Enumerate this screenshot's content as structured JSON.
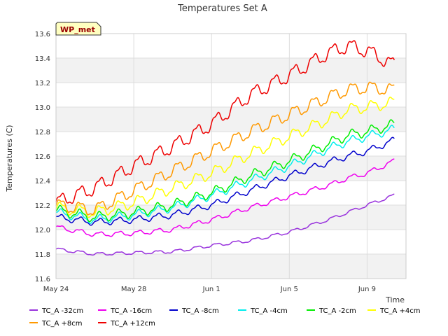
{
  "chart_data": {
    "type": "line",
    "title": "Temperatures Set A",
    "xlabel": "Time",
    "ylabel": "Temperatures (C)",
    "badge": "WP_met",
    "x_ticks": [
      "May 24",
      "May 28",
      "Jun 1",
      "Jun 5",
      "Jun 9"
    ],
    "x_tick_days": [
      0,
      4,
      8,
      12,
      16
    ],
    "x_range_days": [
      0,
      18
    ],
    "x_start_date": "May 24",
    "ylim": [
      11.6,
      13.6
    ],
    "y_ticks": [
      11.6,
      11.8,
      12.0,
      12.2,
      12.4,
      12.6,
      12.8,
      13.0,
      13.2,
      13.4,
      13.6
    ],
    "grid": true,
    "legend_position": "bottom",
    "series": [
      {
        "name": "TC_A -32cm",
        "color": "#9933dd",
        "x": [
          0,
          2,
          4,
          6,
          8,
          10,
          12,
          14,
          15,
          16,
          17.4
        ],
        "y": [
          11.84,
          11.8,
          11.81,
          11.82,
          11.87,
          11.91,
          11.98,
          12.08,
          12.14,
          12.2,
          12.28
        ]
      },
      {
        "name": "TC_A -16cm",
        "color": "#ee00ee",
        "x": [
          0,
          2,
          4,
          6,
          8,
          10,
          12,
          14,
          15,
          16,
          17.4
        ],
        "y": [
          12.02,
          11.96,
          11.97,
          12.0,
          12.08,
          12.18,
          12.27,
          12.36,
          12.42,
          12.46,
          12.56
        ]
      },
      {
        "name": "TC_A -8cm",
        "color": "#0000cc",
        "x": [
          0,
          2,
          4,
          6,
          8,
          10,
          12,
          14,
          15,
          16,
          17.4
        ],
        "y": [
          12.1,
          12.06,
          12.08,
          12.12,
          12.2,
          12.32,
          12.44,
          12.55,
          12.6,
          12.64,
          12.73
        ]
      },
      {
        "name": "TC_A -4cm",
        "color": "#00eeee",
        "x": [
          0,
          2,
          4,
          6,
          8,
          10,
          12,
          14,
          15,
          16,
          17.4
        ],
        "y": [
          12.14,
          12.08,
          12.12,
          12.18,
          12.28,
          12.4,
          12.52,
          12.66,
          12.72,
          12.76,
          12.82
        ]
      },
      {
        "name": "TC_A -2cm",
        "color": "#00ee00",
        "x": [
          0,
          2,
          4,
          6,
          8,
          10,
          12,
          14,
          15,
          16,
          17.4
        ],
        "y": [
          12.16,
          12.1,
          12.14,
          12.2,
          12.3,
          12.44,
          12.56,
          12.7,
          12.77,
          12.8,
          12.86
        ]
      },
      {
        "name": "TC_A +4cm",
        "color": "#ffff00",
        "x": [
          0,
          2,
          4,
          6,
          8,
          10,
          12,
          14,
          15,
          16,
          17.4
        ],
        "y": [
          12.18,
          12.14,
          12.22,
          12.34,
          12.46,
          12.62,
          12.76,
          12.9,
          12.98,
          13.0,
          13.04
        ]
      },
      {
        "name": "TC_A +8cm",
        "color": "#ff9900",
        "x": [
          0,
          2,
          4,
          6,
          8,
          10,
          12,
          14,
          15,
          16,
          17.4
        ],
        "y": [
          12.2,
          12.16,
          12.32,
          12.48,
          12.64,
          12.8,
          12.94,
          13.08,
          13.14,
          13.16,
          13.14
        ]
      },
      {
        "name": "TC_A +12cm",
        "color": "#ee0000",
        "x": [
          0,
          2,
          4,
          6,
          8,
          10,
          12,
          14,
          15,
          16,
          17.4
        ],
        "y": [
          12.22,
          12.34,
          12.52,
          12.68,
          12.86,
          13.1,
          13.26,
          13.44,
          13.5,
          13.46,
          13.34
        ]
      }
    ]
  }
}
